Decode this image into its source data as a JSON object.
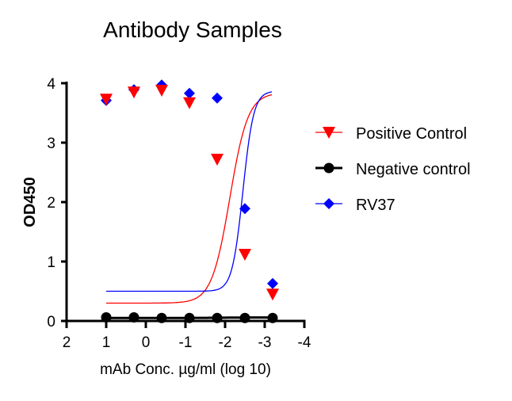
{
  "chart_data": {
    "type": "scatter",
    "title": "Antibody Samples",
    "xlabel": "mAb Conc. µg/ml (log 10)",
    "ylabel": "OD450",
    "xlim": [
      2,
      -4
    ],
    "ylim": [
      0,
      4
    ],
    "x_reversed": true,
    "xticks": [
      2,
      1,
      0,
      -1,
      -2,
      -3,
      -4
    ],
    "xtick_labels": [
      "2",
      "1",
      "0",
      "-1",
      "-2",
      "-3",
      "-4"
    ],
    "yticks": [
      0,
      1,
      2,
      3,
      4
    ],
    "ytick_labels": [
      "0",
      "1",
      "2",
      "3",
      "4"
    ],
    "grid": false,
    "legend_position": "right",
    "x": [
      1,
      0.3,
      -0.4,
      -1.1,
      -1.8,
      -2.5,
      -3.2
    ],
    "series": [
      {
        "name": "Positive Control",
        "color": "#ff0000",
        "marker": "triangle-down",
        "fit_curve": true,
        "values": [
          3.73,
          3.85,
          3.88,
          3.67,
          2.72,
          1.12,
          0.45
        ]
      },
      {
        "name": "Negative control",
        "color": "#000000",
        "marker": "circle",
        "fit_curve": true,
        "values": [
          0.06,
          0.06,
          0.05,
          0.05,
          0.05,
          0.05,
          0.05
        ]
      },
      {
        "name": "RV37",
        "color": "#0000ff",
        "marker": "diamond",
        "fit_curve": true,
        "values": [
          3.71,
          3.89,
          3.97,
          3.83,
          3.75,
          1.89,
          0.63
        ]
      }
    ]
  }
}
